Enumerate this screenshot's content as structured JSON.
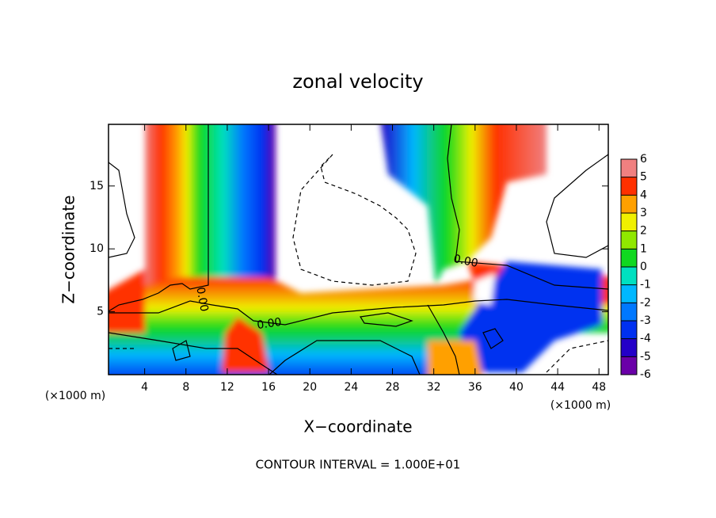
{
  "chart_data": {
    "type": "contour",
    "title": "zonal velocity",
    "x_label": "X−coordinate",
    "y_label": "Z−coordinate",
    "x_unit_label": "(×1000 m)",
    "footer": "CONTOUR INTERVAL = 1.000E+01",
    "contour_labels": [
      "0.00",
      "0.00",
      "0.00"
    ],
    "xlim": [
      0.5,
      48.9
    ],
    "xticks": [
      4,
      8,
      12,
      16,
      20,
      24,
      28,
      32,
      36,
      40,
      44,
      48
    ],
    "ylim": [
      0,
      19.9
    ],
    "yticks": [
      5,
      10,
      15
    ],
    "colorbar": {
      "lim": [
        -6,
        6
      ],
      "ticks": [
        -6,
        -5,
        -4,
        -3,
        -2,
        -1,
        0,
        1,
        2,
        3,
        4,
        5,
        6
      ],
      "colors": [
        "#6a00a8",
        "#2400c8",
        "#0030f0",
        "#0078ff",
        "#00b8ff",
        "#00e0c0",
        "#10d820",
        "#90e800",
        "#f0f000",
        "#ffa000",
        "#ff3000",
        "#f08080"
      ]
    }
  }
}
